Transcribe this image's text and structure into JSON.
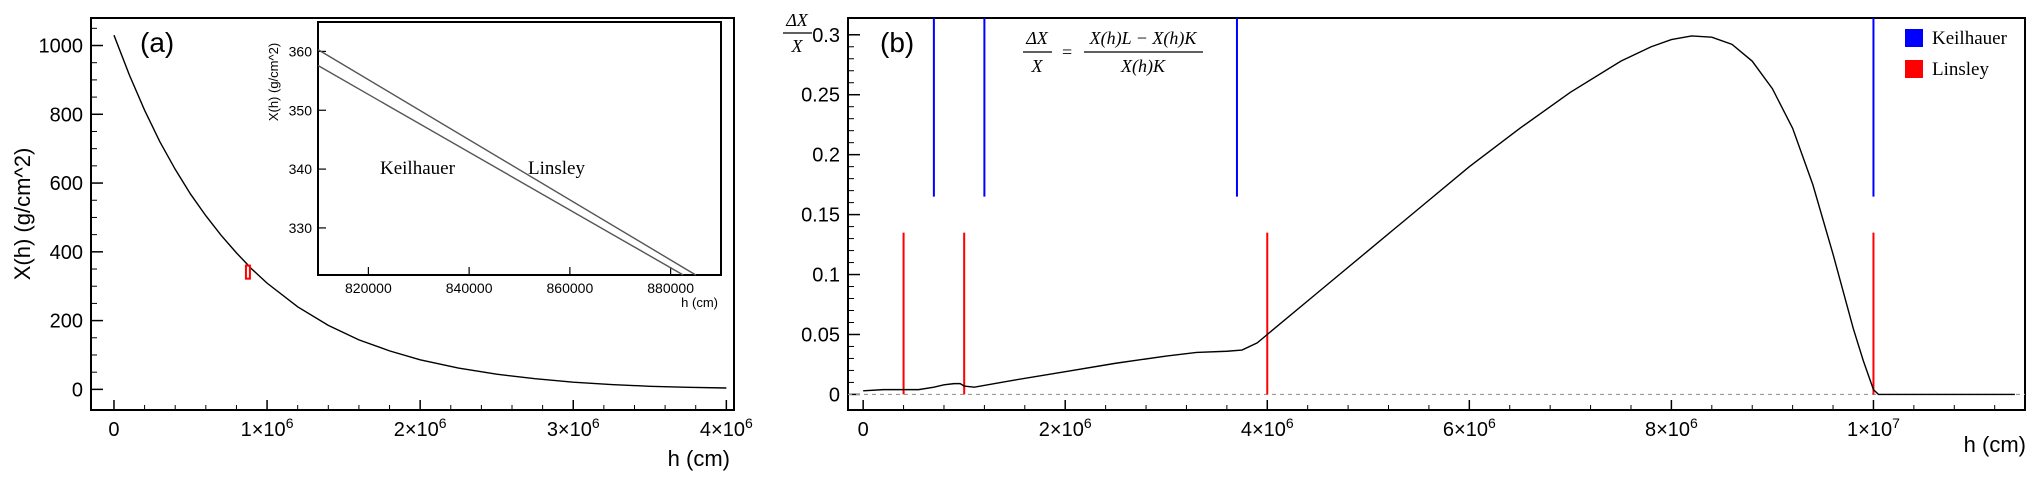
{
  "chart_data": [
    {
      "panel": "(a)",
      "type": "line",
      "xlabel": "h (cm)",
      "ylabel": "X(h) (g/cm^2)",
      "xlim": [
        -150000,
        4050000
      ],
      "ylim": [
        -60,
        1080
      ],
      "x_ticks": [
        0,
        1000000,
        2000000,
        3000000,
        4000000
      ],
      "x_tick_labels": [
        "0",
        "1",
        "2",
        "3",
        "4"
      ],
      "x_tick_multiplier": "×10",
      "x_tick_exponent": "6",
      "y_ticks": [
        0,
        200,
        400,
        600,
        800,
        1000
      ],
      "y_tick_labels": [
        "0",
        "200",
        "400",
        "600",
        "800",
        "1000"
      ],
      "series": [
        {
          "x": [
            0,
            100000,
            200000,
            300000,
            400000,
            500000,
            600000,
            700000,
            800000,
            900000,
            1000000,
            1200000,
            1400000,
            1600000,
            1800000,
            2000000,
            2250000,
            2500000,
            2750000,
            3000000,
            3250000,
            3500000,
            3750000,
            4000000
          ],
          "y": [
            1030,
            915,
            812,
            720,
            640,
            568,
            505,
            448,
            397,
            350,
            309,
            240,
            186,
            144,
            112,
            86,
            62,
            44,
            31,
            21,
            14,
            9,
            6,
            4
          ]
        }
      ],
      "highlight_box": {
        "x": [
          862000,
          888000
        ],
        "y": [
          322,
          360
        ]
      },
      "inset": {
        "xlabel": "h (cm)",
        "ylabel": "X(h) (g/cm^2)",
        "xlim": [
          810000,
          890000
        ],
        "ylim": [
          322,
          365
        ],
        "x_ticks": [
          820000,
          840000,
          860000,
          880000
        ],
        "x_tick_labels": [
          "820000",
          "840000",
          "860000",
          "880000"
        ],
        "y_ticks": [
          330,
          340,
          350,
          360
        ],
        "y_tick_labels": [
          "330",
          "340",
          "350",
          "360"
        ],
        "series": [
          {
            "name": "Linsley",
            "x": [
              810000,
              885000
            ],
            "y": [
              360.3,
              322
            ]
          },
          {
            "name": "Keilhauer",
            "x": [
              810000,
              882500
            ],
            "y": [
              357.6,
              322
            ]
          }
        ],
        "annotations": [
          "Keilhauer",
          "Linsley"
        ]
      }
    },
    {
      "panel": "(b)",
      "type": "line",
      "xlabel": "h (cm)",
      "ylabel": "ΔX / X",
      "xlim": [
        -150000,
        11500000
      ],
      "ylim": [
        -0.013,
        0.314
      ],
      "x_ticks": [
        0,
        2000000,
        4000000,
        6000000,
        8000000,
        10000000
      ],
      "x_tick_labels": [
        "0",
        "2",
        "4",
        "6",
        "8",
        "1"
      ],
      "x_tick_exponents": [
        "",
        "6",
        "6",
        "6",
        "6",
        "7"
      ],
      "x_tick_multiplier": "×10",
      "y_ticks": [
        0,
        0.05,
        0.1,
        0.15,
        0.2,
        0.25,
        0.3
      ],
      "y_tick_labels": [
        "0",
        "0.05",
        "0.1",
        "0.15",
        "0.2",
        "0.25",
        "0.3"
      ],
      "formula": {
        "lhs_num": "ΔX",
        "lhs_den": "X",
        "rhs_num": "X(h)L − X(h)K",
        "rhs_den": "X(h)K"
      },
      "series": [
        {
          "x": [
            0,
            200000,
            400000,
            550000,
            700000,
            800000,
            900000,
            960000,
            1000000,
            1100000,
            1500000,
            2000000,
            2500000,
            3000000,
            3300000,
            3600000,
            3750000,
            3900000,
            4000000,
            4500000,
            5000000,
            5500000,
            6000000,
            6500000,
            7000000,
            7500000,
            7800000,
            8000000,
            8200000,
            8400000,
            8600000,
            8800000,
            9000000,
            9200000,
            9400000,
            9600000,
            9800000,
            9900000,
            10000000,
            10050000,
            11400000
          ],
          "y": [
            0.003,
            0.004,
            0.004,
            0.004,
            0.006,
            0.008,
            0.009,
            0.009,
            0.007,
            0.006,
            0.012,
            0.019,
            0.026,
            0.032,
            0.035,
            0.036,
            0.037,
            0.043,
            0.05,
            0.085,
            0.12,
            0.155,
            0.19,
            0.222,
            0.252,
            0.278,
            0.29,
            0.296,
            0.299,
            0.298,
            0.292,
            0.278,
            0.255,
            0.222,
            0.175,
            0.117,
            0.055,
            0.028,
            0.004,
            0,
            0
          ]
        }
      ],
      "zero_line": 0,
      "boundaries": [
        {
          "name": "Keilhauer",
          "color": "#0000ff",
          "x": [
            700000,
            1200000,
            3700000,
            10000000
          ],
          "y_range": [
            0.165,
            0.314
          ]
        },
        {
          "name": "Linsley",
          "color": "#ff0000",
          "x": [
            400000,
            1000000,
            4000000,
            10000000
          ],
          "y_range": [
            0,
            0.135
          ]
        }
      ],
      "legend": {
        "placement": "top-right",
        "entries": [
          {
            "label": "Keilhauer",
            "color": "#0000ff"
          },
          {
            "label": "Linsley",
            "color": "#ff0000"
          }
        ]
      }
    }
  ]
}
